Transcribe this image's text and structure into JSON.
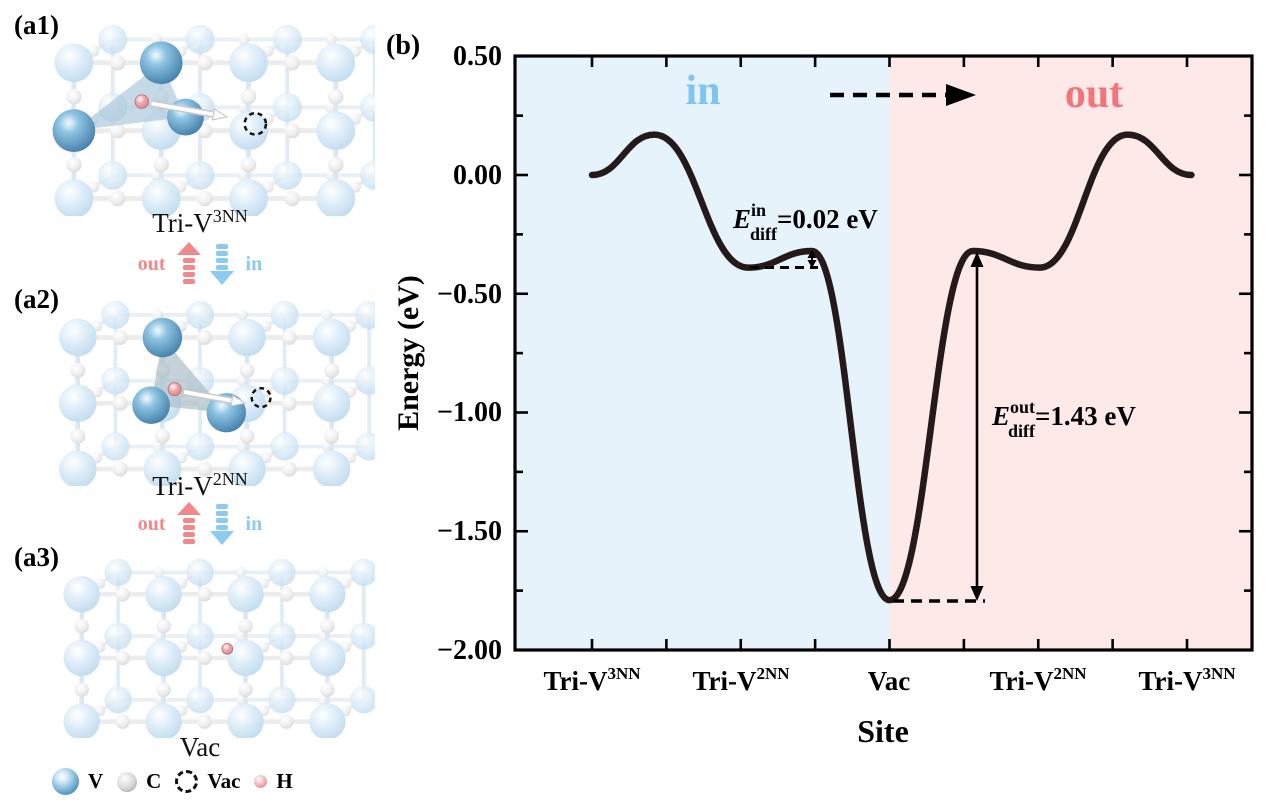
{
  "figure": {
    "panel_b_tag": "(b)",
    "site_axis_label": "Site",
    "energy_axis_label": "Energy (eV)"
  },
  "panels": [
    {
      "tag": "(a1)",
      "label_base": "Tri-V",
      "label_sup": "3NN"
    },
    {
      "tag": "(a2)",
      "label_base": "Tri-V",
      "label_sup": "2NN"
    },
    {
      "tag": "(a3)",
      "label_base": "Vac",
      "label_sup": ""
    }
  ],
  "transfer": {
    "out_label": "out",
    "in_label": "in"
  },
  "legend": [
    {
      "icon": "v-atom-icon",
      "label": "V"
    },
    {
      "icon": "c-atom-icon",
      "label": "C"
    },
    {
      "icon": "vacancy-icon",
      "label": "Vac"
    },
    {
      "icon": "h-atom-icon",
      "label": "H"
    }
  ],
  "chart": {
    "region_in_label": "in",
    "region_out_label": "out",
    "yticks": [
      "0.50",
      "0.00",
      "−0.50",
      "−1.00",
      "−1.50",
      "−2.00"
    ],
    "xticks": [
      {
        "base": "Tri-V",
        "sup": "3NN"
      },
      {
        "base": "Tri-V",
        "sup": "2NN"
      },
      {
        "base": "Vac",
        "sup": ""
      },
      {
        "base": "Tri-V",
        "sup": "2NN"
      },
      {
        "base": "Tri-V",
        "sup": "3NN"
      }
    ],
    "annotation_in": {
      "symbol": "E",
      "sub": "diff",
      "sup": "in",
      "value": "=0.02 eV"
    },
    "annotation_out": {
      "symbol": "E",
      "sub": "diff",
      "sup": "out",
      "value": "=1.43 eV"
    }
  },
  "chart_data": {
    "type": "line",
    "title": "",
    "xlabel": "Site",
    "ylabel": "Energy (eV)",
    "ylim": [
      -2.0,
      0.5
    ],
    "x_categories": [
      "Tri-V3NN",
      "Tri-V2NN",
      "Vac",
      "Tri-V2NN",
      "Tri-V3NN"
    ],
    "site_energies_eV": [
      0.0,
      -0.39,
      -1.79,
      -0.39,
      0.0
    ],
    "profile": [
      {
        "x": 0.0,
        "e": 0.0
      },
      {
        "x": 0.42,
        "e": 0.17
      },
      {
        "x": 1.05,
        "e": -0.39
      },
      {
        "x": 1.48,
        "e": -0.32
      },
      {
        "x": 2.0,
        "e": -1.79
      },
      {
        "x": 2.56,
        "e": -0.32
      },
      {
        "x": 3.01,
        "e": -0.39
      },
      {
        "x": 3.6,
        "e": 0.17
      },
      {
        "x": 4.03,
        "e": 0.0
      }
    ],
    "regions": [
      {
        "label": "in",
        "from": 0,
        "to": 2
      },
      {
        "label": "out",
        "from": 2,
        "to": 4
      }
    ],
    "annotations": [
      {
        "text": "E_diff^in = 0.02 eV",
        "barrier_eV": 0.02
      },
      {
        "text": "E_diff^out = 1.43 eV",
        "barrier_eV": 1.43
      }
    ],
    "grid": false,
    "legend_position": "none"
  },
  "colors": {
    "in_bg": "#e7f3fb",
    "out_bg": "#fde9e8",
    "in_text": "#7ec5ef",
    "out_text": "#f1767b",
    "curve": "#241a1a",
    "out_arrow": "#f1888b",
    "in_arrow": "#8ccaf0",
    "v_atom": "#4f93c0",
    "c_atom": "#a8a8a8",
    "h_atom": "#e0868c"
  }
}
